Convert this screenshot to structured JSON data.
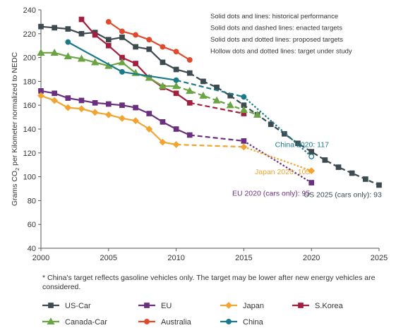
{
  "chart_data": {
    "type": "line",
    "ylabel": "Grams CO",
    "ylabel_sub": "2",
    "ylabel_rest": " per Kilometer normalized to NEDC",
    "xlim": [
      2000,
      2025
    ],
    "ylim": [
      40,
      240
    ],
    "xticks": [
      2000,
      2005,
      2010,
      2015,
      2020,
      2025
    ],
    "yticks": [
      40,
      60,
      80,
      100,
      120,
      140,
      160,
      180,
      200,
      220,
      240
    ],
    "grid": false,
    "legend_position": "bottom",
    "styles_note": [
      "Solid dots and lines: historical performance",
      "Solid dots and dashed lines: enacted targets",
      "Solid dots and dotted lines: proposed targets",
      "Hollow dots and dotted lines: target under study"
    ],
    "footnote": "* China's target reflects gasoline vehicles only. The target may be lower after new energy vehicles are considered.",
    "series": [
      {
        "name": "US-Car",
        "color": "#3d4a4f",
        "marker": "square",
        "historical": [
          [
            2000,
            226
          ],
          [
            2001,
            225
          ],
          [
            2002,
            224
          ],
          [
            2003,
            220
          ],
          [
            2004,
            221
          ],
          [
            2005,
            215
          ],
          [
            2006,
            217
          ],
          [
            2007,
            209
          ],
          [
            2008,
            207
          ],
          [
            2009,
            196
          ],
          [
            2010,
            190
          ],
          [
            2011,
            187
          ]
        ],
        "enacted": [
          [
            2011,
            187
          ],
          [
            2012,
            180
          ],
          [
            2013,
            175
          ],
          [
            2014,
            168
          ],
          [
            2015,
            160
          ],
          [
            2016,
            152
          ],
          [
            2017,
            144
          ],
          [
            2018,
            136
          ],
          [
            2019,
            128
          ],
          [
            2020,
            121
          ],
          [
            2021,
            114
          ],
          [
            2022,
            108
          ],
          [
            2023,
            103
          ],
          [
            2024,
            98
          ],
          [
            2025,
            93
          ]
        ]
      },
      {
        "name": "EU",
        "color": "#6b2f7f",
        "marker": "square",
        "historical": [
          [
            2000,
            172
          ],
          [
            2001,
            170
          ],
          [
            2002,
            166
          ],
          [
            2003,
            164
          ],
          [
            2004,
            162
          ],
          [
            2005,
            161
          ],
          [
            2006,
            160
          ],
          [
            2007,
            158
          ],
          [
            2008,
            153
          ],
          [
            2009,
            146
          ],
          [
            2010,
            140
          ],
          [
            2011,
            135
          ]
        ],
        "enacted": [
          [
            2011,
            135
          ],
          [
            2015,
            130
          ]
        ],
        "proposed": [
          [
            2015,
            130
          ],
          [
            2020,
            95
          ]
        ]
      },
      {
        "name": "Japan",
        "color": "#f2a431",
        "marker": "diamond",
        "historical": [
          [
            2000,
            168
          ],
          [
            2001,
            164
          ],
          [
            2002,
            158
          ],
          [
            2003,
            157
          ],
          [
            2004,
            154
          ],
          [
            2005,
            152
          ],
          [
            2006,
            149
          ],
          [
            2007,
            147
          ],
          [
            2008,
            140
          ],
          [
            2009,
            129
          ],
          [
            2010,
            127
          ]
        ],
        "enacted": [
          [
            2010,
            127
          ],
          [
            2015,
            125
          ]
        ],
        "proposed": [
          [
            2015,
            125
          ],
          [
            2020,
            105
          ]
        ]
      },
      {
        "name": "S.Korea",
        "color": "#a31f3e",
        "marker": "square",
        "historical": [
          [
            2003,
            232
          ],
          [
            2004,
            219
          ],
          [
            2005,
            210
          ],
          [
            2006,
            200
          ],
          [
            2007,
            195
          ],
          [
            2008,
            183
          ],
          [
            2009,
            175
          ],
          [
            2010,
            170
          ],
          [
            2011,
            162
          ]
        ],
        "enacted": [
          [
            2011,
            162
          ],
          [
            2015,
            153
          ]
        ]
      },
      {
        "name": "Canada-Car",
        "color": "#6aa443",
        "marker": "triangle",
        "historical": [
          [
            2000,
            204
          ],
          [
            2001,
            204
          ],
          [
            2002,
            201
          ],
          [
            2003,
            199
          ],
          [
            2004,
            196
          ],
          [
            2005,
            193
          ],
          [
            2006,
            196
          ],
          [
            2007,
            187
          ],
          [
            2008,
            183
          ],
          [
            2009,
            176
          ],
          [
            2010,
            176
          ]
        ],
        "enacted": [
          [
            2010,
            176
          ],
          [
            2011,
            172
          ],
          [
            2012,
            168
          ],
          [
            2013,
            164
          ],
          [
            2014,
            160
          ],
          [
            2015,
            156
          ],
          [
            2016,
            152
          ]
        ]
      },
      {
        "name": "Australia",
        "color": "#e04a2c",
        "marker": "circle",
        "historical": [
          [
            2005,
            230
          ],
          [
            2006,
            222
          ],
          [
            2007,
            219
          ],
          [
            2008,
            215
          ],
          [
            2009,
            209
          ],
          [
            2010,
            205
          ],
          [
            2011,
            198
          ]
        ]
      },
      {
        "name": "China",
        "color": "#1a7a8a",
        "marker": "circle",
        "historical": [
          [
            2002,
            213
          ],
          [
            2006,
            188
          ],
          [
            2010,
            181
          ]
        ],
        "enacted": [
          [
            2010,
            181
          ],
          [
            2015,
            167
          ]
        ],
        "proposed": [
          [
            2015,
            167
          ],
          [
            2020,
            117
          ]
        ]
      }
    ],
    "annotations": [
      {
        "text": "China 2020: 117",
        "color": "#1a7a8a"
      },
      {
        "text": "Japan 2020: 105",
        "color": "#f2a431"
      },
      {
        "text": "EU 2020 (cars only): 95",
        "color": "#6b2f7f"
      },
      {
        "text": "US 2025 (cars only): 93",
        "color": "#3d4a4f"
      }
    ],
    "legend": [
      "US-Car",
      "EU",
      "Japan",
      "S.Korea",
      "Canada-Car",
      "Australia",
      "China"
    ]
  }
}
